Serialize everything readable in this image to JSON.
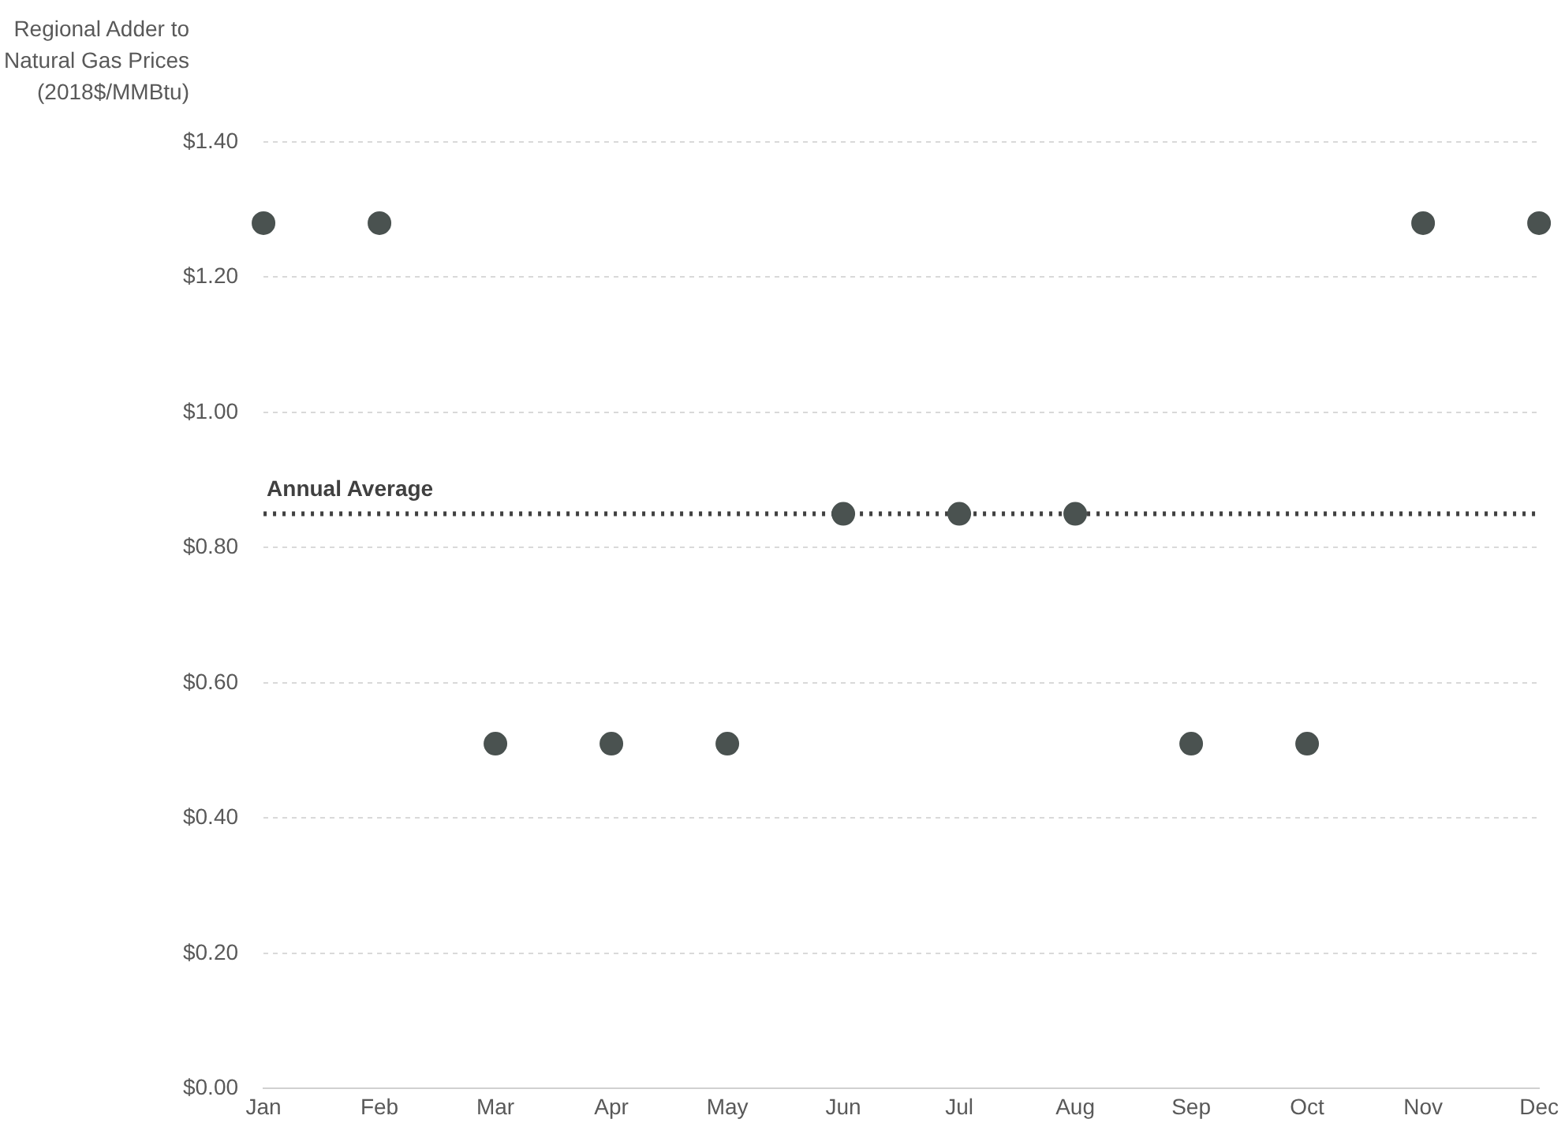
{
  "chart_data": {
    "type": "scatter",
    "ylabel": "Regional Adder to\nNatural Gas Prices\n(2018$/MMBtu)",
    "categories": [
      "Jan",
      "Feb",
      "Mar",
      "Apr",
      "May",
      "Jun",
      "Jul",
      "Aug",
      "Sep",
      "Oct",
      "Nov",
      "Dec"
    ],
    "values": [
      1.28,
      1.28,
      0.51,
      0.51,
      0.51,
      0.85,
      0.85,
      0.85,
      0.51,
      0.51,
      1.28,
      1.28
    ],
    "color": "#4a5250",
    "marker": "circle",
    "ylim": [
      0,
      1.4
    ],
    "yticks": [
      {
        "value": 0,
        "label": "$0.00"
      },
      {
        "value": 0.2,
        "label": "$0.20"
      },
      {
        "value": 0.4,
        "label": "$0.40"
      },
      {
        "value": 0.6,
        "label": "$0.60"
      },
      {
        "value": 0.8,
        "label": "$0.80"
      },
      {
        "value": 1,
        "label": "$1.00"
      },
      {
        "value": 1.2,
        "label": "$1.20"
      },
      {
        "value": 1.4,
        "label": "$1.40"
      }
    ],
    "grid": "y",
    "legend": false,
    "ref_lines": [
      {
        "axis": "y",
        "value": 0.85,
        "label": "Annual Average",
        "color": "#404040",
        "line_style": "dotted"
      }
    ]
  }
}
